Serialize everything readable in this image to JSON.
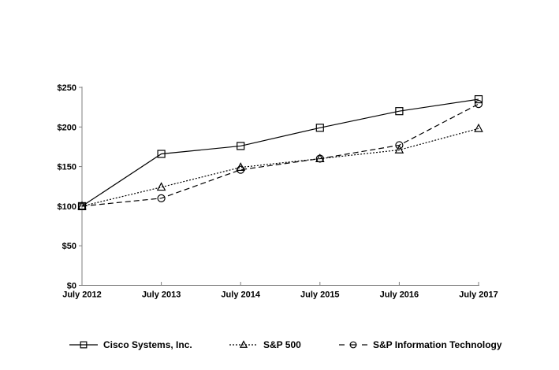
{
  "page": {
    "background": "#ffffff"
  },
  "chart_data": {
    "type": "line",
    "title": "",
    "xlabel": "",
    "ylabel": "",
    "categories": [
      "July 2012",
      "July 2013",
      "July 2014",
      "July 2015",
      "July 2016",
      "July 2017"
    ],
    "y_tick_values": [
      0,
      50,
      100,
      150,
      200,
      250
    ],
    "y_tick_labels": [
      "$0",
      "$50",
      "$100",
      "$150",
      "$200",
      "$250"
    ],
    "ylim": [
      0,
      250
    ],
    "grid": false,
    "legend_position": "bottom",
    "axis_color": "#7f7f7f",
    "text_color": "#000000",
    "series": [
      {
        "name": "Cisco Systems, Inc.",
        "marker": "square",
        "line_style": "solid",
        "color": "#000000",
        "values": [
          100,
          166,
          176,
          199,
          220,
          235
        ]
      },
      {
        "name": "S&P 500",
        "marker": "triangle",
        "line_style": "dotted",
        "color": "#000000",
        "values": [
          100,
          124,
          149,
          160,
          171,
          198
        ]
      },
      {
        "name": "S&P Information Technology",
        "marker": "circle",
        "line_style": "dashed",
        "color": "#000000",
        "values": [
          100,
          110,
          146,
          160,
          177,
          229
        ]
      }
    ]
  }
}
